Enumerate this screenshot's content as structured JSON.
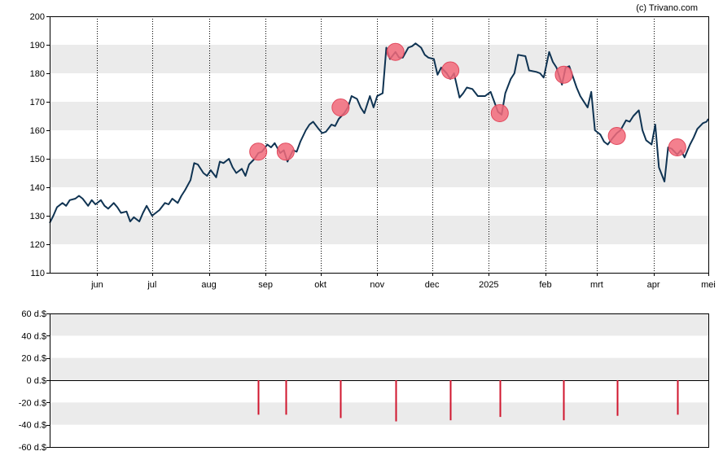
{
  "credit": "(c) Trivano.com",
  "colors": {
    "band": "#ebebeb",
    "line": "#0f3352",
    "marker_fill": "#f26a7a",
    "marker_stroke": "#e0485c",
    "bar": "#d0162e",
    "axis": "#000000"
  },
  "chart_data": [
    {
      "type": "line",
      "title": "",
      "xlabel": "",
      "ylabel": "",
      "ylim": [
        110,
        200
      ],
      "yticks": [
        "110",
        "120",
        "130",
        "140",
        "150",
        "160",
        "170",
        "180",
        "190",
        "200"
      ],
      "x_range": [
        "2024-05-06",
        "2025-05-01"
      ],
      "x_ticks": [
        {
          "label": "jun",
          "date": "2024-06-01"
        },
        {
          "label": "jul",
          "date": "2024-07-01"
        },
        {
          "label": "aug",
          "date": "2024-08-01"
        },
        {
          "label": "sep",
          "date": "2024-09-01"
        },
        {
          "label": "okt",
          "date": "2024-10-01"
        },
        {
          "label": "nov",
          "date": "2024-11-01"
        },
        {
          "label": "dec",
          "date": "2024-12-01"
        },
        {
          "label": "2025",
          "date": "2025-01-01"
        },
        {
          "label": "feb",
          "date": "2025-02-01"
        },
        {
          "label": "mrt",
          "date": "2025-03-01"
        },
        {
          "label": "apr",
          "date": "2025-04-01"
        },
        {
          "label": "mei",
          "date": "2025-05-01"
        }
      ],
      "grid": "vertical dotted at month ticks, alternating horizontal bands",
      "series": [
        {
          "values": [
            [
              "2024-05-06",
              127.5
            ],
            [
              "2024-05-08",
              130.0
            ],
            [
              "2024-05-10",
              133.0
            ],
            [
              "2024-05-13",
              134.5
            ],
            [
              "2024-05-15",
              133.5
            ],
            [
              "2024-05-17",
              135.5
            ],
            [
              "2024-05-20",
              136.0
            ],
            [
              "2024-05-22",
              137.0
            ],
            [
              "2024-05-24",
              136.0
            ],
            [
              "2024-05-27",
              133.5
            ],
            [
              "2024-05-29",
              135.5
            ],
            [
              "2024-05-31",
              134.0
            ],
            [
              "2024-06-03",
              135.5
            ],
            [
              "2024-06-05",
              133.5
            ],
            [
              "2024-06-07",
              132.5
            ],
            [
              "2024-06-10",
              134.5
            ],
            [
              "2024-06-12",
              133.0
            ],
            [
              "2024-06-14",
              131.0
            ],
            [
              "2024-06-17",
              131.5
            ],
            [
              "2024-06-19",
              128.0
            ],
            [
              "2024-06-21",
              129.5
            ],
            [
              "2024-06-24",
              128.0
            ],
            [
              "2024-06-26",
              131.0
            ],
            [
              "2024-06-28",
              133.5
            ],
            [
              "2024-07-01",
              130.0
            ],
            [
              "2024-07-03",
              131.0
            ],
            [
              "2024-07-05",
              132.0
            ],
            [
              "2024-07-08",
              134.5
            ],
            [
              "2024-07-10",
              134.0
            ],
            [
              "2024-07-12",
              136.0
            ],
            [
              "2024-07-15",
              134.5
            ],
            [
              "2024-07-17",
              137.0
            ],
            [
              "2024-07-19",
              139.0
            ],
            [
              "2024-07-22",
              142.5
            ],
            [
              "2024-07-24",
              148.5
            ],
            [
              "2024-07-26",
              148.0
            ],
            [
              "2024-07-29",
              145.0
            ],
            [
              "2024-07-31",
              144.0
            ],
            [
              "2024-08-02",
              146.0
            ],
            [
              "2024-08-05",
              143.5
            ],
            [
              "2024-08-07",
              149.0
            ],
            [
              "2024-08-09",
              148.5
            ],
            [
              "2024-08-12",
              150.0
            ],
            [
              "2024-08-14",
              147.0
            ],
            [
              "2024-08-16",
              145.0
            ],
            [
              "2024-08-19",
              146.5
            ],
            [
              "2024-08-21",
              144.0
            ],
            [
              "2024-08-23",
              148.0
            ],
            [
              "2024-08-26",
              150.0
            ],
            [
              "2024-08-28",
              152.0
            ],
            [
              "2024-08-30",
              152.5
            ],
            [
              "2024-09-02",
              155.0
            ],
            [
              "2024-09-04",
              154.0
            ],
            [
              "2024-09-06",
              155.5
            ],
            [
              "2024-09-09",
              152.0
            ],
            [
              "2024-09-11",
              153.0
            ],
            [
              "2024-09-13",
              149.0
            ],
            [
              "2024-09-16",
              153.0
            ],
            [
              "2024-09-18",
              152.5
            ],
            [
              "2024-09-20",
              156.0
            ],
            [
              "2024-09-23",
              160.0
            ],
            [
              "2024-09-25",
              162.0
            ],
            [
              "2024-09-27",
              163.0
            ],
            [
              "2024-09-30",
              160.5
            ],
            [
              "2024-10-02",
              159.0
            ],
            [
              "2024-10-04",
              159.5
            ],
            [
              "2024-10-07",
              162.0
            ],
            [
              "2024-10-09",
              161.5
            ],
            [
              "2024-10-11",
              164.0
            ],
            [
              "2024-10-14",
              166.0
            ],
            [
              "2024-10-16",
              168.0
            ],
            [
              "2024-10-18",
              172.0
            ],
            [
              "2024-10-21",
              171.0
            ],
            [
              "2024-10-23",
              168.0
            ],
            [
              "2024-10-25",
              166.0
            ],
            [
              "2024-10-28",
              172.0
            ],
            [
              "2024-10-30",
              168.0
            ],
            [
              "2024-11-01",
              172.0
            ],
            [
              "2024-11-04",
              173.0
            ],
            [
              "2024-11-06",
              189.0
            ],
            [
              "2024-11-08",
              185.0
            ],
            [
              "2024-11-11",
              187.5
            ],
            [
              "2024-11-13",
              185.5
            ],
            [
              "2024-11-15",
              185.5
            ],
            [
              "2024-11-18",
              189.0
            ],
            [
              "2024-11-20",
              189.5
            ],
            [
              "2024-11-22",
              190.5
            ],
            [
              "2024-11-25",
              189.0
            ],
            [
              "2024-11-27",
              186.5
            ],
            [
              "2024-11-29",
              185.5
            ],
            [
              "2024-12-02",
              185.0
            ],
            [
              "2024-12-04",
              179.5
            ],
            [
              "2024-12-06",
              182.0
            ],
            [
              "2024-12-09",
              180.0
            ],
            [
              "2024-12-11",
              178.0
            ],
            [
              "2024-12-13",
              180.0
            ],
            [
              "2024-12-16",
              171.5
            ],
            [
              "2024-12-18",
              173.0
            ],
            [
              "2024-12-20",
              175.0
            ],
            [
              "2024-12-23",
              174.5
            ],
            [
              "2024-12-26",
              172.0
            ],
            [
              "2024-12-30",
              172.0
            ],
            [
              "2025-01-02",
              173.5
            ],
            [
              "2025-01-06",
              166.5
            ],
            [
              "2025-01-08",
              165.5
            ],
            [
              "2025-01-10",
              173.0
            ],
            [
              "2025-01-13",
              178.0
            ],
            [
              "2025-01-15",
              180.0
            ],
            [
              "2025-01-17",
              186.5
            ],
            [
              "2025-01-21",
              186.0
            ],
            [
              "2025-01-23",
              181.0
            ],
            [
              "2025-01-27",
              180.5
            ],
            [
              "2025-01-29",
              180.0
            ],
            [
              "2025-01-31",
              178.5
            ],
            [
              "2025-02-03",
              187.5
            ],
            [
              "2025-02-05",
              184.0
            ],
            [
              "2025-02-07",
              182.0
            ],
            [
              "2025-02-10",
              176.0
            ],
            [
              "2025-02-12",
              182.0
            ],
            [
              "2025-02-14",
              182.5
            ],
            [
              "2025-02-18",
              175.0
            ],
            [
              "2025-02-20",
              172.0
            ],
            [
              "2025-02-24",
              168.0
            ],
            [
              "2025-02-26",
              173.5
            ],
            [
              "2025-02-28",
              160.0
            ],
            [
              "2025-03-03",
              158.5
            ],
            [
              "2025-03-05",
              156.0
            ],
            [
              "2025-03-07",
              155.0
            ],
            [
              "2025-03-10",
              157.5
            ],
            [
              "2025-03-12",
              159.0
            ],
            [
              "2025-03-14",
              160.0
            ],
            [
              "2025-03-17",
              163.5
            ],
            [
              "2025-03-19",
              163.0
            ],
            [
              "2025-03-21",
              165.0
            ],
            [
              "2025-03-24",
              167.0
            ],
            [
              "2025-03-26",
              160.0
            ],
            [
              "2025-03-28",
              156.5
            ],
            [
              "2025-03-31",
              155.0
            ],
            [
              "2025-04-02",
              162.0
            ],
            [
              "2025-04-04",
              147.0
            ],
            [
              "2025-04-07",
              142.0
            ],
            [
              "2025-04-09",
              154.0
            ],
            [
              "2025-04-11",
              153.5
            ],
            [
              "2025-04-14",
              151.5
            ],
            [
              "2025-04-16",
              153.0
            ],
            [
              "2025-04-18",
              150.5
            ],
            [
              "2025-04-21",
              155.0
            ],
            [
              "2025-04-23",
              157.5
            ],
            [
              "2025-04-25",
              160.5
            ],
            [
              "2025-04-28",
              162.5
            ],
            [
              "2025-04-30",
              163.0
            ],
            [
              "2025-05-01",
              164.0
            ]
          ]
        }
      ],
      "markers": [
        [
          "2024-08-28",
          152.5
        ],
        [
          "2024-09-12",
          152.5
        ],
        [
          "2024-10-12",
          168.0
        ],
        [
          "2024-11-11",
          187.5
        ],
        [
          "2024-12-11",
          181.0
        ],
        [
          "2025-01-07",
          166.0
        ],
        [
          "2025-02-11",
          179.5
        ],
        [
          "2025-03-12",
          158.0
        ],
        [
          "2025-04-14",
          154.0
        ]
      ]
    },
    {
      "type": "bar",
      "title": "",
      "xlabel": "",
      "ylabel": "",
      "ylim": [
        -60,
        60
      ],
      "yticks": [
        "60 d.$",
        "40 d.$",
        "20 d.$",
        "0 d.$",
        "-20 d.$",
        "-40 d.$",
        "-60 d.$"
      ],
      "tick_values": [
        60,
        40,
        20,
        0,
        -20,
        -40,
        -60
      ],
      "bars": [
        [
          "2024-08-28",
          -31
        ],
        [
          "2024-09-12",
          -31
        ],
        [
          "2024-10-12",
          -34
        ],
        [
          "2024-11-11",
          -37
        ],
        [
          "2024-12-11",
          -36
        ],
        [
          "2025-01-07",
          -33
        ],
        [
          "2025-02-11",
          -36
        ],
        [
          "2025-03-12",
          -32
        ],
        [
          "2025-04-14",
          -31
        ]
      ]
    }
  ]
}
